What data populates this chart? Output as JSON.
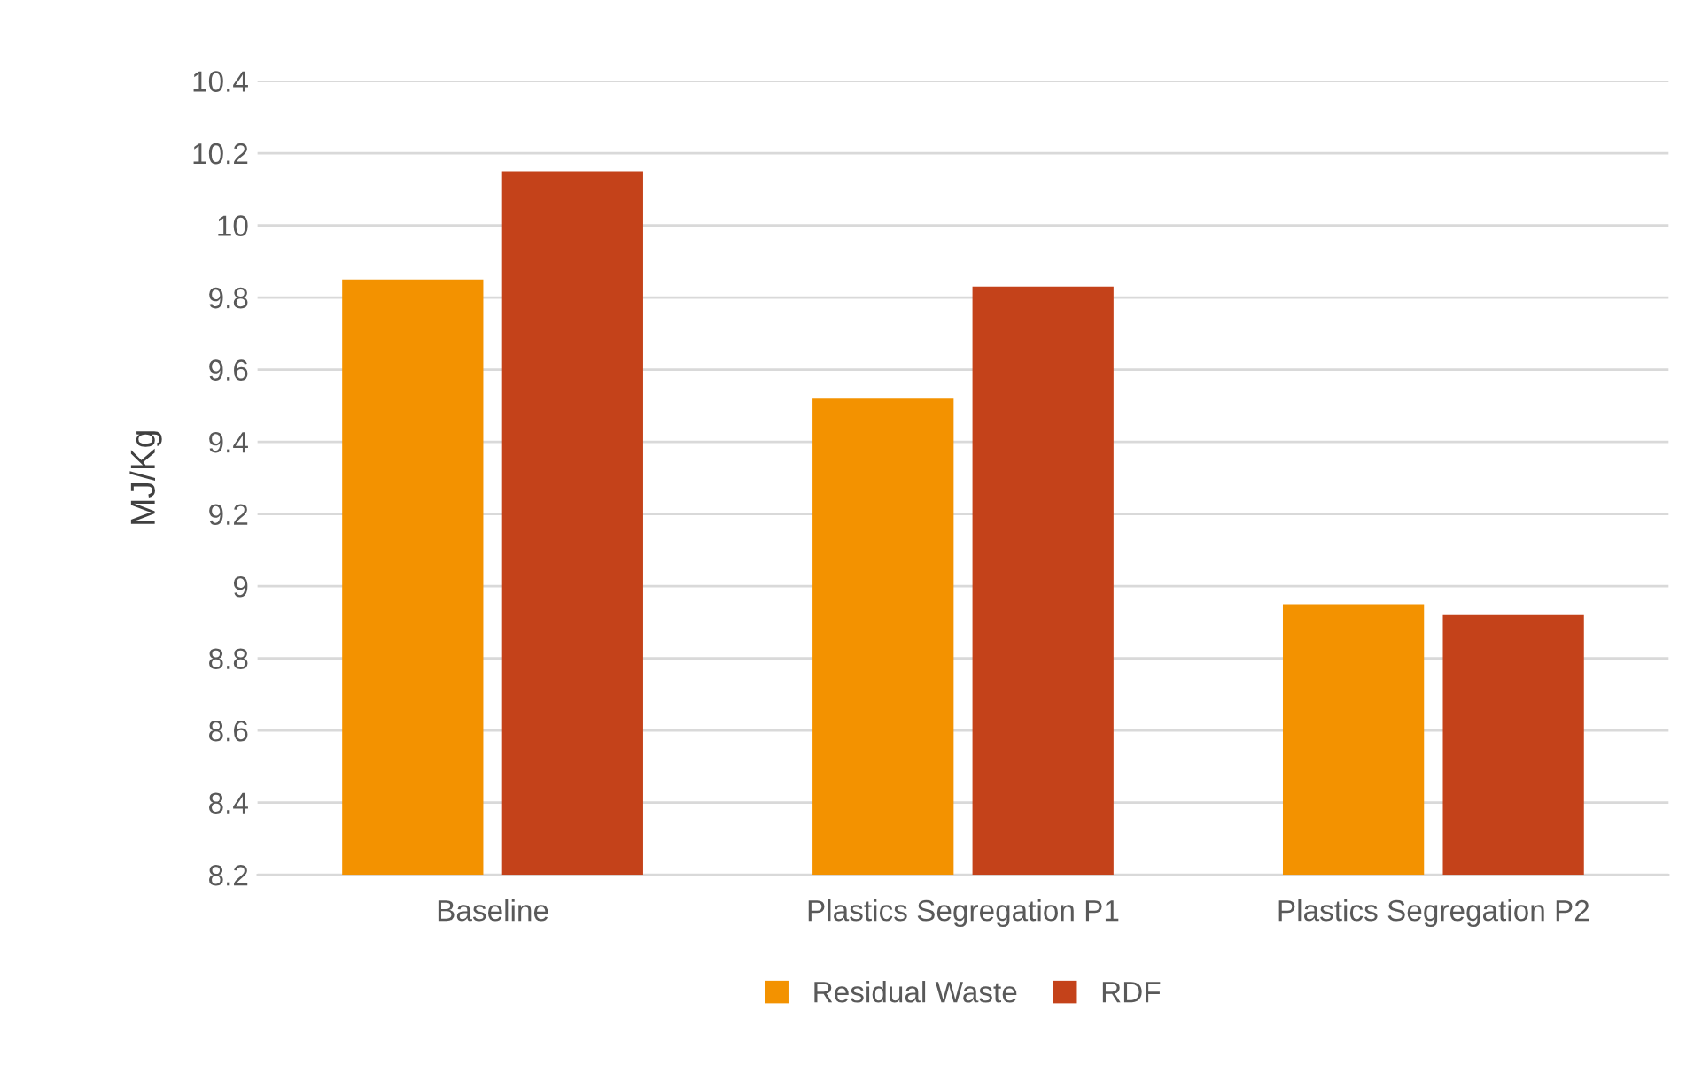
{
  "chart_data": {
    "type": "bar",
    "ylabel": "MJ/Kg",
    "categories": [
      "Baseline",
      "Plastics Segregation P1",
      "Plastics Segregation P2"
    ],
    "series": [
      {
        "name": "Residual Waste",
        "color": "#f39200",
        "values": [
          9.85,
          9.52,
          8.95
        ]
      },
      {
        "name": "RDF",
        "color": "#c4421a",
        "values": [
          10.15,
          9.83,
          8.92
        ]
      }
    ],
    "ylim": [
      8.2,
      10.4
    ],
    "yticks": [
      8.2,
      8.4,
      8.6,
      8.8,
      9,
      9.2,
      9.4,
      9.6,
      9.8,
      10,
      10.2,
      10.4
    ],
    "grid": "y",
    "legend": "bottom"
  }
}
